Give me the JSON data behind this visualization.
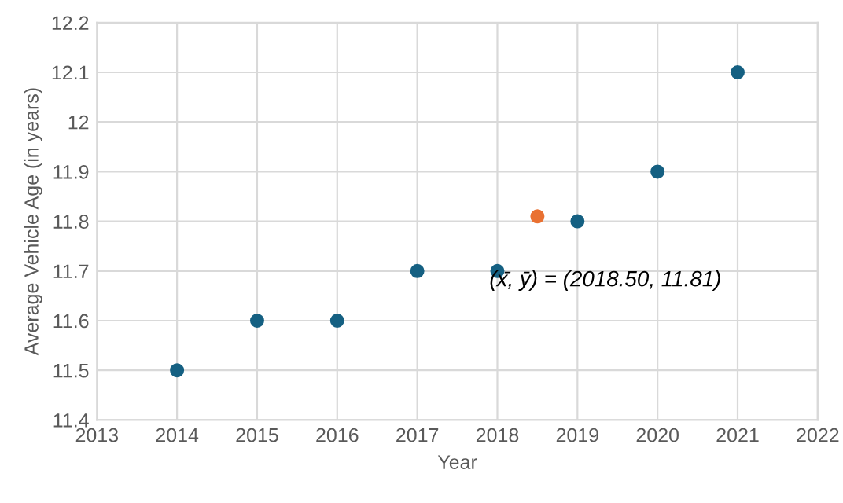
{
  "chart_data": {
    "type": "scatter",
    "xlabel": "Year",
    "ylabel": "Average Vehicle Age (in years)",
    "series": [
      {
        "color": "#156082",
        "x": [
          2014,
          2015,
          2016,
          2017,
          2018,
          2019,
          2020,
          2021
        ],
        "values": [
          11.5,
          11.6,
          11.6,
          11.7,
          11.7,
          11.8,
          11.9,
          12.1
        ]
      },
      {
        "color": "#e97132",
        "x": [
          2018.5
        ],
        "values": [
          11.81
        ]
      }
    ],
    "annotations": [
      {
        "text": "(x̄, ȳ) = (2018.50, 11.81)",
        "x": 2018.5,
        "y": 11.81
      }
    ],
    "xlim": [
      2013,
      2022
    ],
    "xticks": [
      2013,
      2014,
      2015,
      2016,
      2017,
      2018,
      2019,
      2020,
      2021,
      2022
    ],
    "ylim": [
      11.4,
      12.2
    ],
    "yticks": [
      11.4,
      11.5,
      11.6,
      11.7,
      11.8,
      11.9,
      12,
      12.1,
      12.2
    ],
    "grid": true,
    "marker": "circle"
  }
}
